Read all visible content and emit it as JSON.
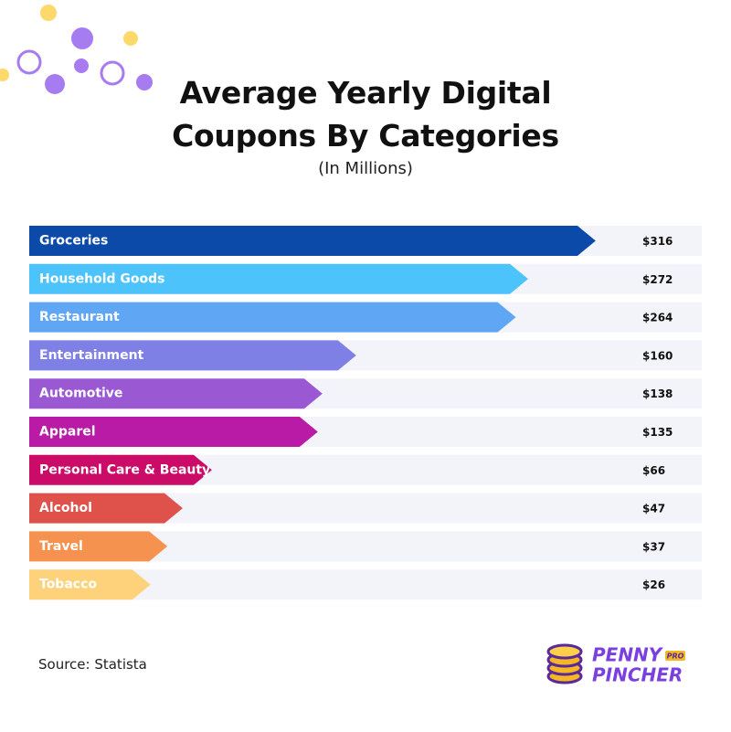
{
  "chart_data": {
    "type": "bar",
    "orientation": "horizontal",
    "title": "Average Yearly Digital Coupons By Categories",
    "subtitle": "(In Millions)",
    "categories": [
      "Groceries",
      "Household Goods",
      "Restaurant",
      "Entertainment",
      "Automotive",
      "Apparel",
      "Personal Care & Beauty",
      "Alcohol",
      "Travel",
      "Tobacco"
    ],
    "values": [
      316,
      272,
      264,
      160,
      138,
      135,
      66,
      47,
      37,
      26
    ],
    "value_labels": [
      "$316",
      "$272",
      "$264",
      "$160",
      "$138",
      "$135",
      "$66",
      "$47",
      "$37",
      "$26"
    ],
    "colors": [
      "#0b4aa8",
      "#4cc3fb",
      "#5fa7f4",
      "#7f80e6",
      "#9a58d3",
      "#b91ba6",
      "#cb0b68",
      "#df514b",
      "#f6924f",
      "#fdd27b"
    ],
    "source": "Source: Statista"
  },
  "logo": {
    "line1": "PENNY",
    "line2": "PINCHER",
    "badge": "PRO"
  }
}
